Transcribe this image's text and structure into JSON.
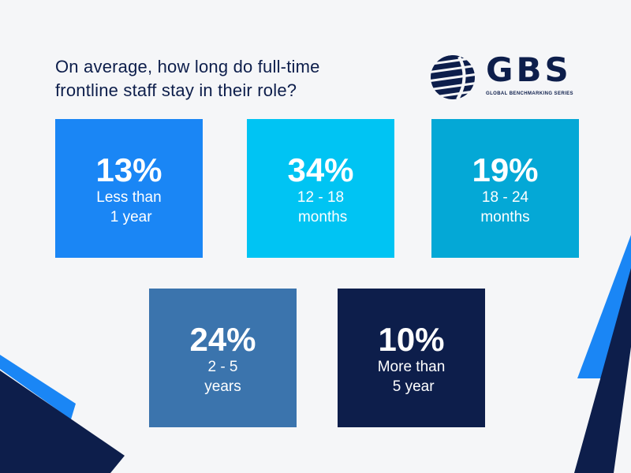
{
  "header": {
    "title_lines": [
      "On average, how long do full-time",
      "frontline staff stay in their role?"
    ]
  },
  "logo": {
    "wordmark": "GBS",
    "subtitle": "GLOBAL BENCHMARKING SERIES"
  },
  "chart_data": {
    "type": "table",
    "title": "On average, how long do full-time frontline staff stay in their role?",
    "categories": [
      "Less than 1 year",
      "12 - 18 months",
      "18 - 24 months",
      "2 - 5 years",
      "More than 5 year"
    ],
    "values": [
      13,
      34,
      19,
      24,
      10
    ],
    "unit": "%",
    "tiles": [
      {
        "pct": "13%",
        "label": "Less than\n 1 year",
        "color": "#1a86f5"
      },
      {
        "pct": "34%",
        "label": "12 - 18\n months",
        "color": "#00c4f3"
      },
      {
        "pct": "19%",
        "label": "18 - 24\nmonths",
        "color": "#04a8d6"
      },
      {
        "pct": "24%",
        "label": "2 - 5\nyears",
        "color": "#3b74ad"
      },
      {
        "pct": "10%",
        "label": "More than\n 5 year",
        "color": "#0d1e4b"
      }
    ]
  },
  "colors": {
    "background": "#f5f6f8",
    "navy": "#0d1e4b",
    "bright_blue": "#1a86f5"
  }
}
